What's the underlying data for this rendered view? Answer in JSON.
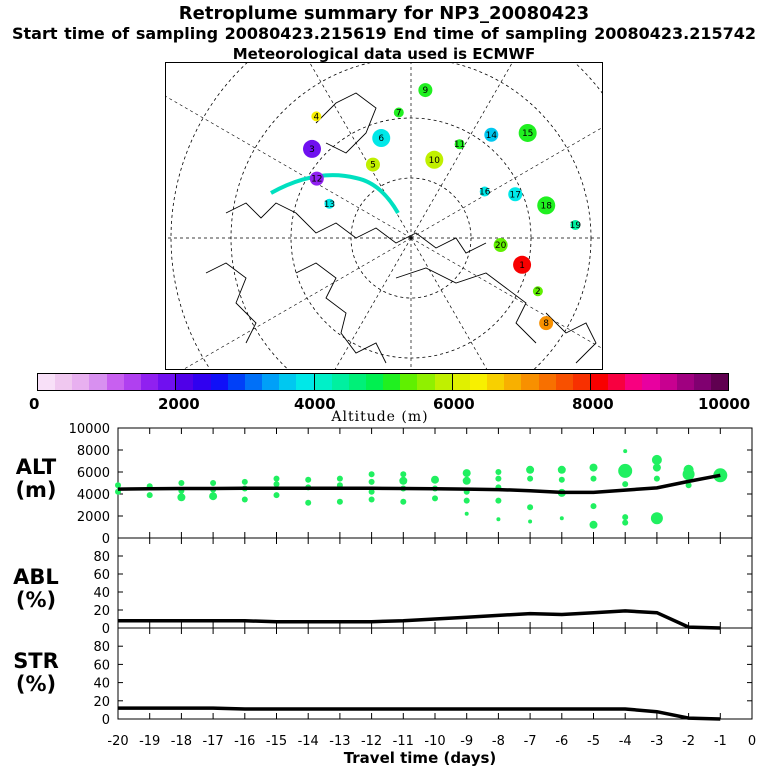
{
  "header": {
    "title": "Retroplume summary for NP3_20080423",
    "sampling": "Start time of sampling 20080423.215619     End time of sampling 20080423.215742",
    "met": "Meteorological data used is ECMWF"
  },
  "colorbar": {
    "colors": [
      "#f8e0f8",
      "#f0c8f0",
      "#e8b0f0",
      "#d890f0",
      "#c860f0",
      "#b040f0",
      "#9020f0",
      "#7010f0",
      "#5000e8",
      "#3000f0",
      "#1010f8",
      "#0040f8",
      "#0070f8",
      "#00a0f8",
      "#00c8f0",
      "#00e8e8",
      "#00f0c8",
      "#00f0a0",
      "#00f078",
      "#00f050",
      "#20f020",
      "#60f000",
      "#90f000",
      "#c0f000",
      "#e0f000",
      "#f8f000",
      "#f8d000",
      "#f8b000",
      "#f89000",
      "#f87000",
      "#f85000",
      "#f83000",
      "#f80000",
      "#f80040",
      "#f80080",
      "#e800a0",
      "#c80090",
      "#a00080",
      "#800070",
      "#600050"
    ],
    "tick_labels": [
      "0",
      "2000",
      "4000",
      "6000",
      "8000",
      "10000"
    ],
    "label": "Altitude (m)"
  },
  "panel_labels": {
    "alt": "ALT\n(m)",
    "abl": "ABL\n(%)",
    "str": "STR\n(%)"
  },
  "map_clusters": [
    {
      "n": "13",
      "c": "#00e8e8",
      "lon": 205
    },
    {
      "n": "12",
      "c": "#9020f0",
      "lon": 215
    },
    {
      "n": "3",
      "c": "#7010f0",
      "lon": 225
    },
    {
      "n": "4",
      "c": "#f8f000",
      "lon": 235
    },
    {
      "n": "5",
      "c": "#c0f000",
      "lon": 245
    },
    {
      "n": "6",
      "c": "#00e8e8",
      "lon": 255
    },
    {
      "n": "7",
      "c": "#20f020",
      "lon": 265
    },
    {
      "n": "9",
      "c": "#20f020",
      "lon": 275
    },
    {
      "n": "10",
      "c": "#c0f000",
      "lon": 285
    },
    {
      "n": "11",
      "c": "#20f020",
      "lon": 295
    },
    {
      "n": "14",
      "c": "#00c8f0",
      "lon": 305
    },
    {
      "n": "15",
      "c": "#20f020",
      "lon": 315
    },
    {
      "n": "16",
      "c": "#00e8e8",
      "lon": 325
    },
    {
      "n": "17",
      "c": "#00e8e8",
      "lon": 335
    },
    {
      "n": "18",
      "c": "#20f020",
      "lon": 345
    },
    {
      "n": "19",
      "c": "#00f0a0",
      "lon": 355
    },
    {
      "n": "20",
      "c": "#60f000",
      "lon": 5
    },
    {
      "n": "1",
      "c": "#f80000",
      "lon": 15
    },
    {
      "n": "2",
      "c": "#60f000",
      "lon": 25
    },
    {
      "n": "8",
      "c": "#f89000",
      "lon": 35
    }
  ],
  "chart_data": [
    {
      "type": "scatter",
      "title": "",
      "ylabel": "ALT (m)",
      "xlabel": "Travel time (days)",
      "xlim": [
        -20,
        0
      ],
      "ylim": [
        0,
        10000
      ],
      "yticks": [
        0,
        2000,
        4000,
        6000,
        8000,
        10000
      ],
      "xticks": [
        -20,
        -19,
        -18,
        -17,
        -16,
        -15,
        -14,
        -13,
        -12,
        -11,
        -10,
        -9,
        -8,
        -7,
        -6,
        -5,
        -4,
        -3,
        -2,
        -1,
        0
      ],
      "series": [
        {
          "name": "mean altitude",
          "x": [
            -20,
            -19,
            -18,
            -17,
            -16,
            -15,
            -14,
            -13,
            -12,
            -11,
            -10,
            -9,
            -8,
            -7,
            -6,
            -5,
            -4,
            -3,
            -2,
            -1
          ],
          "values": [
            4450,
            4480,
            4500,
            4500,
            4520,
            4520,
            4530,
            4520,
            4520,
            4500,
            4480,
            4450,
            4400,
            4300,
            4150,
            4150,
            4350,
            4550,
            5150,
            5700
          ]
        },
        {
          "name": "cluster altitudes",
          "points": [
            {
              "x": -20,
              "y": 4200,
              "s": 3
            },
            {
              "x": -20,
              "y": 4800,
              "s": 3
            },
            {
              "x": -19,
              "y": 3900,
              "s": 3
            },
            {
              "x": -19,
              "y": 4700,
              "s": 3
            },
            {
              "x": -18,
              "y": 3700,
              "s": 4
            },
            {
              "x": -18,
              "y": 4300,
              "s": 3
            },
            {
              "x": -18,
              "y": 5000,
              "s": 3
            },
            {
              "x": -17,
              "y": 3800,
              "s": 4
            },
            {
              "x": -17,
              "y": 4400,
              "s": 3
            },
            {
              "x": -17,
              "y": 5000,
              "s": 3
            },
            {
              "x": -16,
              "y": 3500,
              "s": 3
            },
            {
              "x": -16,
              "y": 4500,
              "s": 3
            },
            {
              "x": -16,
              "y": 5100,
              "s": 3
            },
            {
              "x": -15,
              "y": 3900,
              "s": 3
            },
            {
              "x": -15,
              "y": 4900,
              "s": 3
            },
            {
              "x": -15,
              "y": 5400,
              "s": 3
            },
            {
              "x": -14,
              "y": 3200,
              "s": 3
            },
            {
              "x": -14,
              "y": 4600,
              "s": 3
            },
            {
              "x": -14,
              "y": 5300,
              "s": 3
            },
            {
              "x": -13,
              "y": 3300,
              "s": 3
            },
            {
              "x": -13,
              "y": 4800,
              "s": 3
            },
            {
              "x": -13,
              "y": 5400,
              "s": 3
            },
            {
              "x": -12,
              "y": 3500,
              "s": 3
            },
            {
              "x": -12,
              "y": 4200,
              "s": 3
            },
            {
              "x": -12,
              "y": 5100,
              "s": 3
            },
            {
              "x": -12,
              "y": 5800,
              "s": 3
            },
            {
              "x": -11,
              "y": 3300,
              "s": 3
            },
            {
              "x": -11,
              "y": 4500,
              "s": 3
            },
            {
              "x": -11,
              "y": 5200,
              "s": 4
            },
            {
              "x": -11,
              "y": 5800,
              "s": 3
            },
            {
              "x": -10,
              "y": 3600,
              "s": 3
            },
            {
              "x": -10,
              "y": 4500,
              "s": 3
            },
            {
              "x": -10,
              "y": 5300,
              "s": 4
            },
            {
              "x": -9,
              "y": 2200,
              "s": 2
            },
            {
              "x": -9,
              "y": 3400,
              "s": 3
            },
            {
              "x": -9,
              "y": 4200,
              "s": 3
            },
            {
              "x": -9,
              "y": 5200,
              "s": 4
            },
            {
              "x": -9,
              "y": 5900,
              "s": 4
            },
            {
              "x": -8,
              "y": 1700,
              "s": 2
            },
            {
              "x": -8,
              "y": 3400,
              "s": 3
            },
            {
              "x": -8,
              "y": 4600,
              "s": 3
            },
            {
              "x": -8,
              "y": 5400,
              "s": 3
            },
            {
              "x": -8,
              "y": 6000,
              "s": 3
            },
            {
              "x": -7,
              "y": 2800,
              "s": 3
            },
            {
              "x": -7,
              "y": 1500,
              "s": 2
            },
            {
              "x": -7,
              "y": 5400,
              "s": 3
            },
            {
              "x": -7,
              "y": 6200,
              "s": 4
            },
            {
              "x": -6,
              "y": 1800,
              "s": 2
            },
            {
              "x": -6,
              "y": 4100,
              "s": 4
            },
            {
              "x": -6,
              "y": 5300,
              "s": 3
            },
            {
              "x": -6,
              "y": 6200,
              "s": 4
            },
            {
              "x": -5,
              "y": 1200,
              "s": 4
            },
            {
              "x": -5,
              "y": 2900,
              "s": 3
            },
            {
              "x": -5,
              "y": 5400,
              "s": 3
            },
            {
              "x": -5,
              "y": 6400,
              "s": 4
            },
            {
              "x": -4,
              "y": 1400,
              "s": 3
            },
            {
              "x": -4,
              "y": 1900,
              "s": 3
            },
            {
              "x": -4,
              "y": 4900,
              "s": 3
            },
            {
              "x": -4,
              "y": 6100,
              "s": 7
            },
            {
              "x": -4,
              "y": 7900,
              "s": 2
            },
            {
              "x": -3,
              "y": 1800,
              "s": 6
            },
            {
              "x": -3,
              "y": 5400,
              "s": 3
            },
            {
              "x": -3,
              "y": 6400,
              "s": 4
            },
            {
              "x": -3,
              "y": 7100,
              "s": 5
            },
            {
              "x": -2,
              "y": 5800,
              "s": 6
            },
            {
              "x": -2,
              "y": 6200,
              "s": 5
            },
            {
              "x": -2,
              "y": 4800,
              "s": 3
            },
            {
              "x": -1,
              "y": 5700,
              "s": 7
            }
          ]
        }
      ]
    },
    {
      "type": "line",
      "ylabel": "ABL (%)",
      "xlim": [
        -20,
        0
      ],
      "ylim": [
        0,
        100
      ],
      "yticks": [
        0,
        20,
        40,
        60,
        80
      ],
      "series": [
        {
          "name": "ABL fraction",
          "x": [
            -20,
            -19,
            -18,
            -17,
            -16,
            -15,
            -14,
            -13,
            -12,
            -11,
            -10,
            -9,
            -8,
            -7,
            -6,
            -5,
            -4,
            -3,
            -2,
            -1
          ],
          "values": [
            8,
            8,
            8,
            8,
            8,
            7,
            7,
            7,
            7,
            8,
            10,
            12,
            14,
            16,
            15,
            17,
            19,
            17,
            1,
            0
          ]
        }
      ]
    },
    {
      "type": "line",
      "ylabel": "STR (%)",
      "xlabel": "Travel time (days)",
      "xlim": [
        -20,
        0
      ],
      "ylim": [
        0,
        100
      ],
      "yticks": [
        0,
        20,
        40,
        60,
        80
      ],
      "series": [
        {
          "name": "STR fraction",
          "x": [
            -20,
            -19,
            -18,
            -17,
            -16,
            -15,
            -14,
            -13,
            -12,
            -11,
            -10,
            -9,
            -8,
            -7,
            -6,
            -5,
            -4,
            -3,
            -2,
            -1
          ],
          "values": [
            12,
            12,
            12,
            12,
            11,
            11,
            11,
            11,
            11,
            11,
            11,
            11,
            11,
            11,
            11,
            11,
            11,
            8,
            1,
            0
          ]
        }
      ]
    }
  ]
}
